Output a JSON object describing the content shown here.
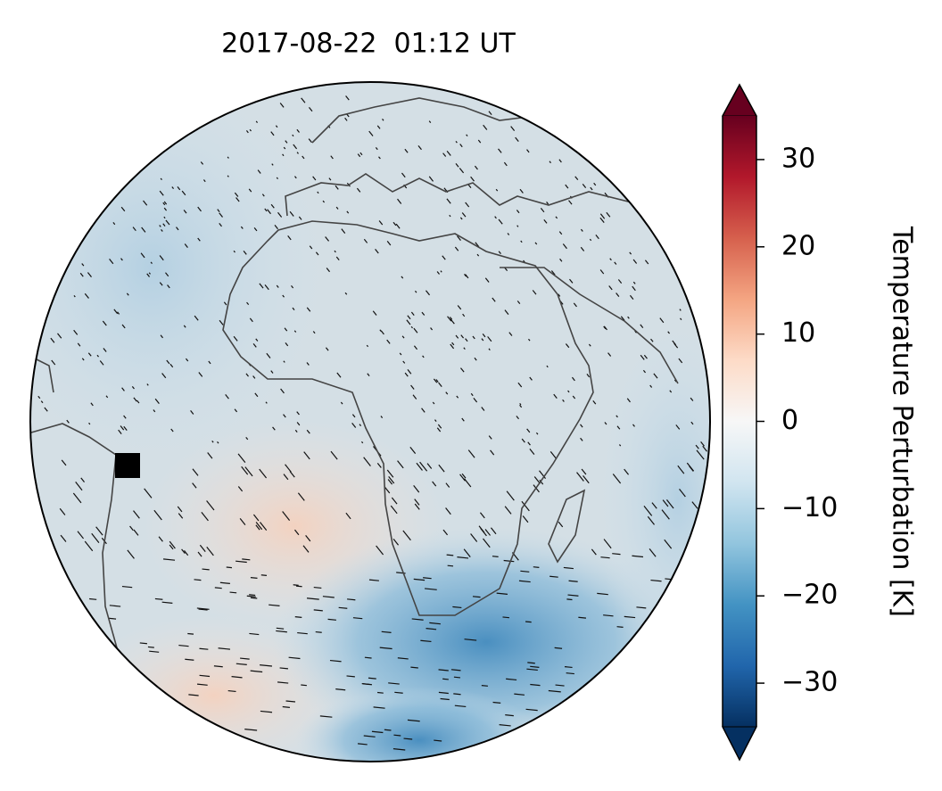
{
  "title": "2017-08-22  01:12 UT",
  "colorbar": {
    "label": "Temperature Perturbation [K]",
    "lim": [
      -35,
      35
    ],
    "ticks": [
      {
        "value": 30,
        "label": "30"
      },
      {
        "value": 20,
        "label": "20"
      },
      {
        "value": 10,
        "label": "10"
      },
      {
        "value": 0,
        "label": "0"
      },
      {
        "value": -10,
        "label": "−10"
      },
      {
        "value": -20,
        "label": "−20"
      },
      {
        "value": -30,
        "label": "−30"
      }
    ]
  }
}
